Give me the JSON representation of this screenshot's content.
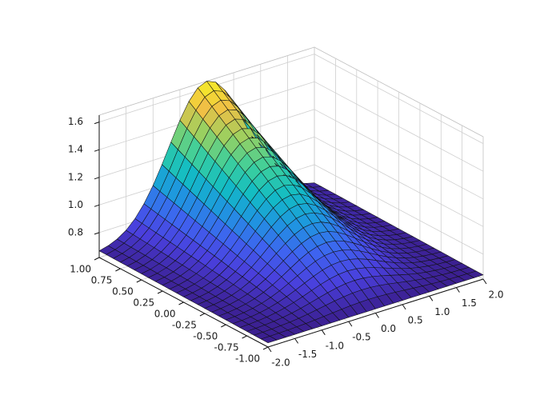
{
  "chart_data": {
    "type": "surface",
    "title": "",
    "xlabel": "",
    "ylabel": "",
    "zlabel": "",
    "x_range": [
      -2.0,
      2.0
    ],
    "y_range": [
      -1.0,
      1.0
    ],
    "z_range": [
      0.62,
      1.65
    ],
    "x_ticks": [
      "-2.0",
      "-1.5",
      "-1.0",
      "-0.5",
      "0.0",
      "0.5",
      "1.0",
      "1.5",
      "2.0"
    ],
    "y_ticks": [
      "-1.00",
      "-0.75",
      "-0.50",
      "-0.25",
      "0.00",
      "0.25",
      "0.50",
      "0.75",
      "1.00"
    ],
    "z_ticks": [
      "0.8",
      "1.0",
      "1.2",
      "1.4",
      "1.6"
    ],
    "x_tick_values": [
      -2.0,
      -1.5,
      -1.0,
      -0.5,
      0.0,
      0.5,
      1.0,
      1.5,
      2.0
    ],
    "y_tick_values": [
      -1.0,
      -0.75,
      -0.5,
      -0.25,
      0.0,
      0.25,
      0.5,
      0.75,
      1.0
    ],
    "z_tick_values": [
      0.8,
      1.0,
      1.2,
      1.4,
      1.6
    ],
    "surface": {
      "function": "z = 0.65 + exp(-x^2) * (1 + y) / 2",
      "x_samples": 25,
      "y_samples": 25,
      "z_min": 0.65,
      "z_max": 1.65
    },
    "colormap": [
      "#3b1f8f",
      "#4a3fdc",
      "#3f62f0",
      "#1f95e0",
      "#12bcc4",
      "#3dcf9c",
      "#9ad060",
      "#f0c045",
      "#f5f025"
    ],
    "grid": true,
    "legend": "none"
  }
}
